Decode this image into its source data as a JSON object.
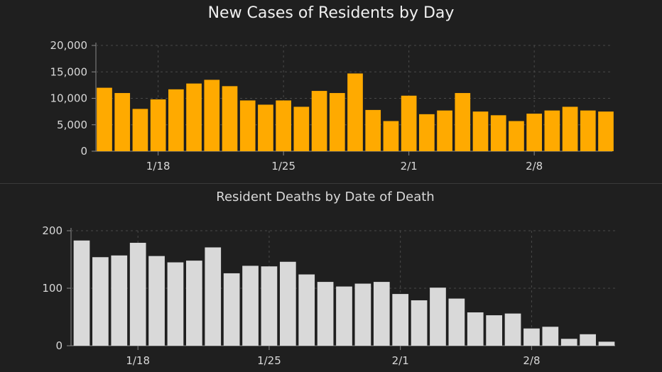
{
  "chart_data": [
    {
      "type": "bar",
      "title": "New Cases of Residents by Day",
      "xlabel": "",
      "ylabel": "",
      "ylim": [
        0,
        20000
      ],
      "yticks": [
        0,
        5000,
        10000,
        15000,
        20000
      ],
      "ytick_labels": [
        "0",
        "5,000",
        "10,000",
        "15,000",
        "20,000"
      ],
      "xtick_labels": [
        {
          "label": "1/18",
          "index": 3
        },
        {
          "label": "1/25",
          "index": 10
        },
        {
          "label": "2/1",
          "index": 17
        },
        {
          "label": "2/8",
          "index": 24
        }
      ],
      "grid": true,
      "bar_color": "#ffaa00",
      "values": [
        12000,
        11000,
        8000,
        9800,
        11700,
        12800,
        13500,
        12300,
        9600,
        8800,
        9600,
        8400,
        11400,
        11000,
        14700,
        7800,
        5700,
        10500,
        7000,
        7700,
        11000,
        7500,
        6800,
        5700,
        7100,
        7700,
        8400,
        7700,
        7500
      ]
    },
    {
      "type": "bar",
      "title": "Resident Deaths by Date of Death",
      "xlabel": "",
      "ylabel": "",
      "ylim": [
        0,
        200
      ],
      "yticks": [
        0,
        100,
        200
      ],
      "ytick_labels": [
        "0",
        "100",
        "200"
      ],
      "xtick_labels": [
        {
          "label": "1/18",
          "index": 3
        },
        {
          "label": "1/25",
          "index": 10
        },
        {
          "label": "2/1",
          "index": 17
        },
        {
          "label": "2/8",
          "index": 24
        }
      ],
      "grid": true,
      "bar_color": "#d9d9d9",
      "values": [
        183,
        154,
        157,
        179,
        156,
        145,
        148,
        171,
        126,
        139,
        138,
        146,
        124,
        111,
        103,
        108,
        111,
        90,
        79,
        101,
        82,
        58,
        53,
        56,
        30,
        33,
        12,
        20,
        7
      ]
    }
  ]
}
